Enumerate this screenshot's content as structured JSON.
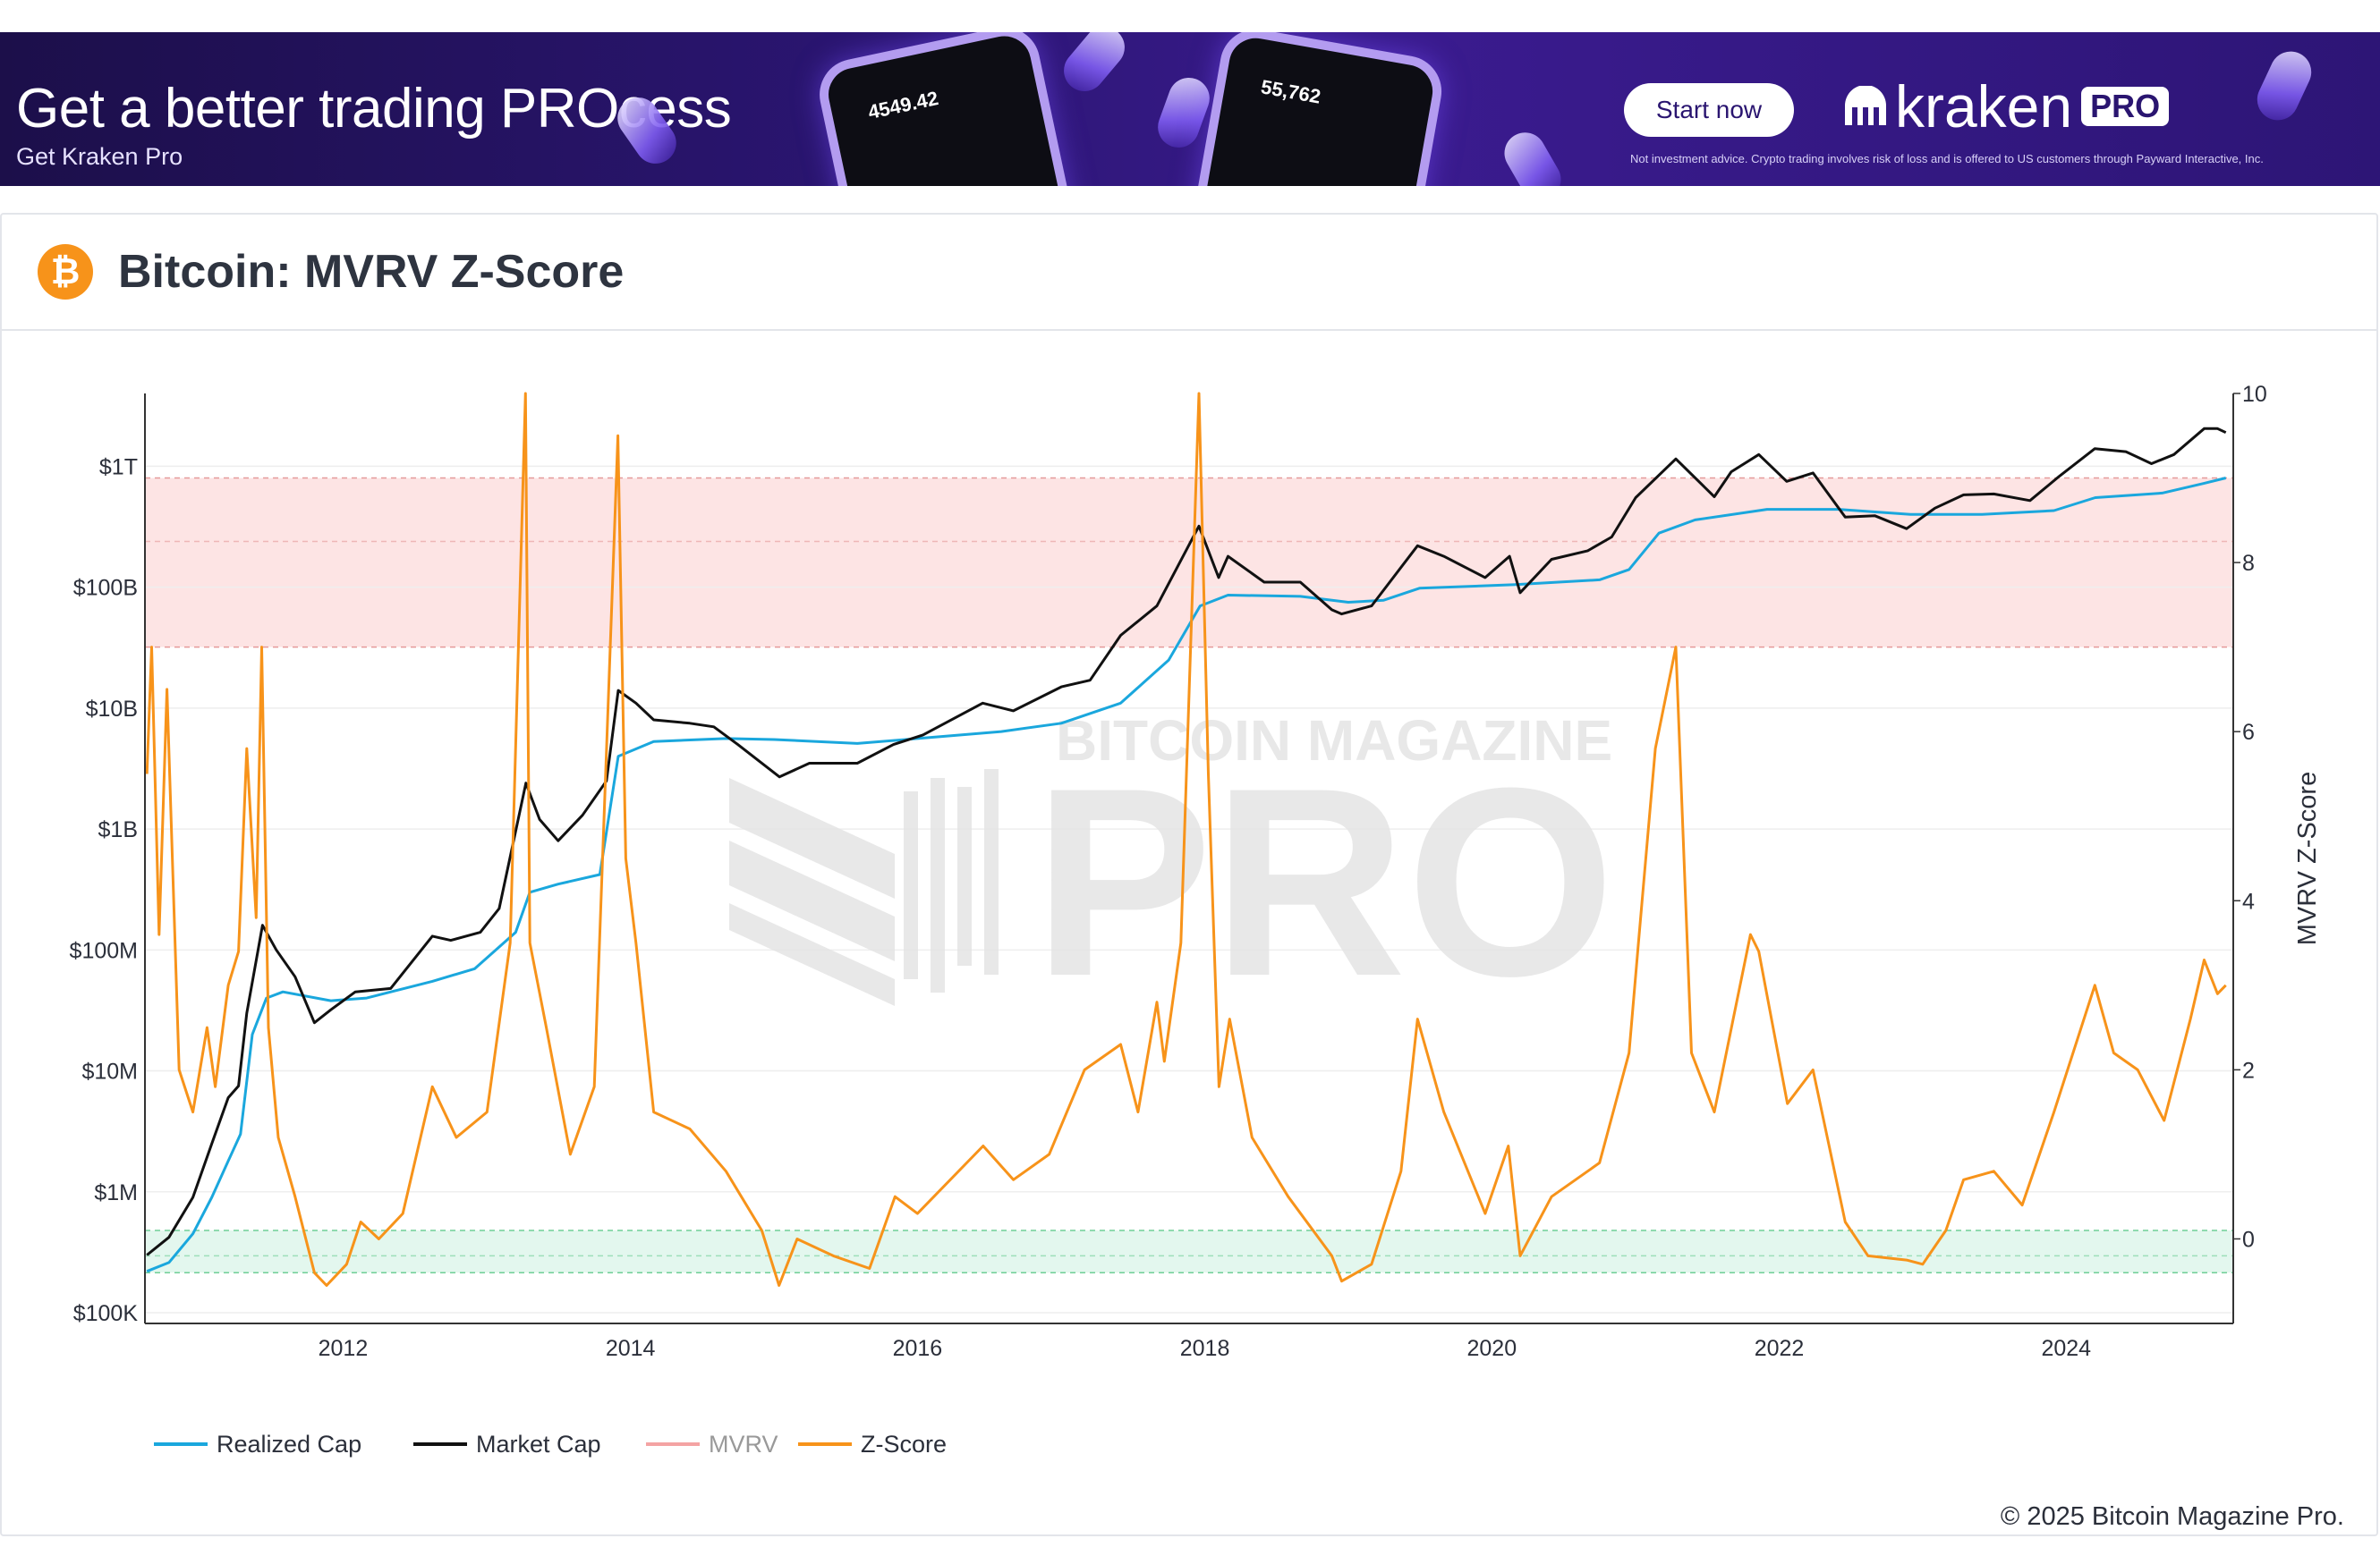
{
  "ad": {
    "headline": "Get a better trading PROcess",
    "subline": "Get Kraken Pro",
    "button_label": "Start now",
    "logo_text": "kraken",
    "logo_badge": "PRO",
    "disclaimer": "Not investment advice. Crypto trading involves risk of loss and is offered to US customers through Payward Interactive, Inc.",
    "phone1_text": "4549.42",
    "phone2_text": "55,762",
    "colors": {
      "background": "#2a1570",
      "accent": "#b39cf0"
    }
  },
  "header": {
    "icon": "bitcoin-icon",
    "icon_glyph": "₿",
    "title": "Bitcoin: MVRV Z-Score"
  },
  "watermark": {
    "line1": "BITCOIN MAGAZINE",
    "line2": "PRO"
  },
  "copyright": "© 2025 Bitcoin Magazine Pro.",
  "chart_data": {
    "type": "line",
    "title": "Bitcoin: MVRV Z-Score",
    "x_axis": {
      "range": [
        "2010-08-15",
        "2025-03-01"
      ],
      "ticks": [
        "2012",
        "2014",
        "2016",
        "2018",
        "2020",
        "2022",
        "2024"
      ]
    },
    "y_left": {
      "scale": "log",
      "range_usd": [
        100000,
        4000000000000
      ],
      "ticks": [
        {
          "value": 100000,
          "label": "$100K"
        },
        {
          "value": 1000000,
          "label": "$1M"
        },
        {
          "value": 10000000,
          "label": "$10M"
        },
        {
          "value": 100000000,
          "label": "$100M"
        },
        {
          "value": 1000000000,
          "label": "$1B"
        },
        {
          "value": 10000000000,
          "label": "$10B"
        },
        {
          "value": 100000000000,
          "label": "$100B"
        },
        {
          "value": 1000000000000,
          "label": "$1T"
        }
      ]
    },
    "y_right": {
      "label": "MVRV Z-Score",
      "range": [
        -1,
        10
      ],
      "ticks": [
        0,
        2,
        4,
        6,
        8,
        10
      ]
    },
    "bands": [
      {
        "name": "overvalued",
        "from": 7,
        "to": 9,
        "color": "#fde4e4",
        "mid_line": 8.25
      },
      {
        "name": "undervalued",
        "from": -0.4,
        "to": 0.1,
        "color": "#e3f7ee",
        "mid_line": -0.2
      }
    ],
    "legend": {
      "position": "bottom-left",
      "items": [
        {
          "name": "Realized Cap",
          "color": "#1aa7dd",
          "enabled": true
        },
        {
          "name": "Market Cap",
          "color": "#111111",
          "enabled": true
        },
        {
          "name": "MVRV",
          "color": "#f4a3a3",
          "enabled": false
        },
        {
          "name": "Z-Score",
          "color": "#f7931a",
          "enabled": true
        }
      ]
    },
    "series": [
      {
        "name": "Market Cap",
        "color": "#111111",
        "axis": "left",
        "points": [
          [
            "2010-08-20",
            300000
          ],
          [
            "2010-10-15",
            420000
          ],
          [
            "2010-12-15",
            900000
          ],
          [
            "2011-02-01",
            2500000
          ],
          [
            "2011-03-15",
            6000000
          ],
          [
            "2011-04-10",
            7500000
          ],
          [
            "2011-05-01",
            30000000
          ],
          [
            "2011-06-10",
            160000000
          ],
          [
            "2011-07-15",
            100000000
          ],
          [
            "2011-09-01",
            60000000
          ],
          [
            "2011-10-20",
            25000000
          ],
          [
            "2011-12-01",
            32000000
          ],
          [
            "2012-02-01",
            45000000
          ],
          [
            "2012-05-01",
            48000000
          ],
          [
            "2012-08-15",
            130000000
          ],
          [
            "2012-10-01",
            120000000
          ],
          [
            "2012-12-15",
            140000000
          ],
          [
            "2013-02-01",
            220000000
          ],
          [
            "2013-04-10",
            2400000000
          ],
          [
            "2013-05-15",
            1200000000
          ],
          [
            "2013-07-01",
            800000000
          ],
          [
            "2013-09-01",
            1300000000
          ],
          [
            "2013-11-01",
            2500000000
          ],
          [
            "2013-12-01",
            14000000000
          ],
          [
            "2014-01-15",
            11000000000
          ],
          [
            "2014-03-01",
            8000000000
          ],
          [
            "2014-06-01",
            7500000000
          ],
          [
            "2014-08-01",
            7000000000
          ],
          [
            "2014-10-01",
            5000000000
          ],
          [
            "2015-01-15",
            2700000000
          ],
          [
            "2015-04-01",
            3500000000
          ],
          [
            "2015-08-01",
            3500000000
          ],
          [
            "2015-11-01",
            5000000000
          ],
          [
            "2016-01-15",
            6000000000
          ],
          [
            "2016-06-15",
            11000000000
          ],
          [
            "2016-09-01",
            9500000000
          ],
          [
            "2017-01-01",
            15000000000
          ],
          [
            "2017-03-15",
            17000000000
          ],
          [
            "2017-06-01",
            40000000000
          ],
          [
            "2017-09-01",
            70000000000
          ],
          [
            "2017-12-17",
            320000000000
          ],
          [
            "2018-02-05",
            120000000000
          ],
          [
            "2018-03-01",
            180000000000
          ],
          [
            "2018-06-01",
            110000000000
          ],
          [
            "2018-09-01",
            110000000000
          ],
          [
            "2018-11-20",
            65000000000
          ],
          [
            "2018-12-15",
            60000000000
          ],
          [
            "2019-03-01",
            70000000000
          ],
          [
            "2019-06-26",
            220000000000
          ],
          [
            "2019-09-01",
            180000000000
          ],
          [
            "2019-12-15",
            120000000000
          ],
          [
            "2020-02-15",
            180000000000
          ],
          [
            "2020-03-13",
            90000000000
          ],
          [
            "2020-06-01",
            170000000000
          ],
          [
            "2020-09-01",
            200000000000
          ],
          [
            "2020-11-01",
            260000000000
          ],
          [
            "2021-01-01",
            550000000000
          ],
          [
            "2021-04-13",
            1150000000000
          ],
          [
            "2021-07-20",
            560000000000
          ],
          [
            "2021-09-01",
            900000000000
          ],
          [
            "2021-11-10",
            1250000000000
          ],
          [
            "2022-01-20",
            750000000000
          ],
          [
            "2022-03-28",
            880000000000
          ],
          [
            "2022-06-18",
            380000000000
          ],
          [
            "2022-09-01",
            390000000000
          ],
          [
            "2022-11-21",
            305000000000
          ],
          [
            "2023-02-01",
            450000000000
          ],
          [
            "2023-04-15",
            580000000000
          ],
          [
            "2023-07-01",
            590000000000
          ],
          [
            "2023-10-01",
            520000000000
          ],
          [
            "2023-12-15",
            830000000000
          ],
          [
            "2024-03-14",
            1400000000000
          ],
          [
            "2024-06-01",
            1320000000000
          ],
          [
            "2024-08-05",
            1050000000000
          ],
          [
            "2024-10-01",
            1250000000000
          ],
          [
            "2024-12-17",
            2050000000000
          ],
          [
            "2025-01-20",
            2050000000000
          ],
          [
            "2025-02-10",
            1900000000000
          ]
        ]
      },
      {
        "name": "Realized Cap",
        "color": "#1aa7dd",
        "axis": "left",
        "points": [
          [
            "2010-08-20",
            220000
          ],
          [
            "2010-10-15",
            260000
          ],
          [
            "2010-12-15",
            450000
          ],
          [
            "2011-02-01",
            900000
          ],
          [
            "2011-03-15",
            1800000
          ],
          [
            "2011-04-15",
            3000000
          ],
          [
            "2011-05-15",
            20000000
          ],
          [
            "2011-06-20",
            40000000
          ],
          [
            "2011-08-01",
            45000000
          ],
          [
            "2011-12-01",
            38000000
          ],
          [
            "2012-03-01",
            40000000
          ],
          [
            "2012-08-15",
            55000000
          ],
          [
            "2012-12-01",
            70000000
          ],
          [
            "2013-03-15",
            140000000
          ],
          [
            "2013-04-20",
            300000000
          ],
          [
            "2013-07-01",
            350000000
          ],
          [
            "2013-10-15",
            420000000
          ],
          [
            "2013-12-01",
            4000000000
          ],
          [
            "2014-03-01",
            5300000000
          ],
          [
            "2014-09-01",
            5600000000
          ],
          [
            "2015-01-01",
            5500000000
          ],
          [
            "2015-08-01",
            5100000000
          ],
          [
            "2016-01-01",
            5600000000
          ],
          [
            "2016-08-01",
            6400000000
          ],
          [
            "2017-01-01",
            7500000000
          ],
          [
            "2017-06-01",
            11000000000
          ],
          [
            "2017-10-01",
            25000000000
          ],
          [
            "2017-12-20",
            70000000000
          ],
          [
            "2018-03-01",
            86000000000
          ],
          [
            "2018-09-01",
            84000000000
          ],
          [
            "2019-01-01",
            75000000000
          ],
          [
            "2019-04-01",
            78000000000
          ],
          [
            "2019-07-01",
            98000000000
          ],
          [
            "2020-03-01",
            105000000000
          ],
          [
            "2020-10-01",
            115000000000
          ],
          [
            "2020-12-15",
            140000000000
          ],
          [
            "2021-03-01",
            280000000000
          ],
          [
            "2021-06-01",
            360000000000
          ],
          [
            "2021-12-01",
            440000000000
          ],
          [
            "2022-06-01",
            440000000000
          ],
          [
            "2022-12-01",
            400000000000
          ],
          [
            "2023-06-01",
            400000000000
          ],
          [
            "2023-12-01",
            430000000000
          ],
          [
            "2024-03-15",
            550000000000
          ],
          [
            "2024-09-01",
            600000000000
          ],
          [
            "2024-12-15",
            720000000000
          ],
          [
            "2025-02-10",
            800000000000
          ]
        ]
      },
      {
        "name": "Z-Score",
        "color": "#f7931a",
        "axis": "right",
        "points": [
          [
            "2010-08-20",
            5.5
          ],
          [
            "2010-09-01",
            7.0
          ],
          [
            "2010-09-20",
            3.6
          ],
          [
            "2010-10-10",
            6.5
          ],
          [
            "2010-11-10",
            2.0
          ],
          [
            "2010-12-15",
            1.5
          ],
          [
            "2011-01-20",
            2.5
          ],
          [
            "2011-02-10",
            1.8
          ],
          [
            "2011-03-15",
            3.0
          ],
          [
            "2011-04-10",
            3.4
          ],
          [
            "2011-05-01",
            5.8
          ],
          [
            "2011-05-25",
            3.8
          ],
          [
            "2011-06-08",
            7.0
          ],
          [
            "2011-06-25",
            2.5
          ],
          [
            "2011-07-20",
            1.2
          ],
          [
            "2011-09-01",
            0.5
          ],
          [
            "2011-10-20",
            -0.4
          ],
          [
            "2011-11-20",
            -0.55
          ],
          [
            "2012-01-10",
            -0.3
          ],
          [
            "2012-02-15",
            0.2
          ],
          [
            "2012-04-01",
            0.0
          ],
          [
            "2012-06-01",
            0.3
          ],
          [
            "2012-08-15",
            1.8
          ],
          [
            "2012-10-15",
            1.2
          ],
          [
            "2013-01-01",
            1.5
          ],
          [
            "2013-03-01",
            3.5
          ],
          [
            "2013-04-09",
            10.0
          ],
          [
            "2013-04-20",
            3.5
          ],
          [
            "2013-06-01",
            2.5
          ],
          [
            "2013-08-01",
            1.0
          ],
          [
            "2013-10-01",
            1.8
          ],
          [
            "2013-11-30",
            9.5
          ],
          [
            "2013-12-20",
            4.5
          ],
          [
            "2014-01-15",
            3.5
          ],
          [
            "2014-03-01",
            1.5
          ],
          [
            "2014-06-01",
            1.3
          ],
          [
            "2014-09-01",
            0.8
          ],
          [
            "2014-12-01",
            0.1
          ],
          [
            "2015-01-14",
            -0.55
          ],
          [
            "2015-03-01",
            0.0
          ],
          [
            "2015-06-01",
            -0.2
          ],
          [
            "2015-09-01",
            -0.35
          ],
          [
            "2015-11-05",
            0.5
          ],
          [
            "2016-01-01",
            0.3
          ],
          [
            "2016-06-16",
            1.1
          ],
          [
            "2016-09-01",
            0.7
          ],
          [
            "2016-12-01",
            1.0
          ],
          [
            "2017-03-01",
            2.0
          ],
          [
            "2017-06-01",
            2.3
          ],
          [
            "2017-07-15",
            1.5
          ],
          [
            "2017-09-01",
            2.8
          ],
          [
            "2017-09-20",
            2.1
          ],
          [
            "2017-11-01",
            3.5
          ],
          [
            "2017-12-17",
            10.0
          ],
          [
            "2018-01-10",
            5.5
          ],
          [
            "2018-02-06",
            1.8
          ],
          [
            "2018-03-05",
            2.6
          ],
          [
            "2018-05-01",
            1.2
          ],
          [
            "2018-08-01",
            0.5
          ],
          [
            "2018-11-20",
            -0.2
          ],
          [
            "2018-12-15",
            -0.5
          ],
          [
            "2019-03-01",
            -0.3
          ],
          [
            "2019-05-15",
            0.8
          ],
          [
            "2019-06-26",
            2.6
          ],
          [
            "2019-09-01",
            1.5
          ],
          [
            "2019-12-15",
            0.3
          ],
          [
            "2020-02-12",
            1.1
          ],
          [
            "2020-03-13",
            -0.2
          ],
          [
            "2020-06-01",
            0.5
          ],
          [
            "2020-10-01",
            0.9
          ],
          [
            "2020-12-15",
            2.2
          ],
          [
            "2021-01-08",
            3.5
          ],
          [
            "2021-02-20",
            5.8
          ],
          [
            "2021-04-13",
            7.0
          ],
          [
            "2021-05-23",
            2.2
          ],
          [
            "2021-07-20",
            1.5
          ],
          [
            "2021-09-06",
            2.6
          ],
          [
            "2021-10-20",
            3.6
          ],
          [
            "2021-11-10",
            3.4
          ],
          [
            "2022-01-22",
            1.6
          ],
          [
            "2022-03-28",
            2.0
          ],
          [
            "2022-06-18",
            0.2
          ],
          [
            "2022-08-15",
            -0.2
          ],
          [
            "2022-11-21",
            -0.25
          ],
          [
            "2023-01-01",
            -0.3
          ],
          [
            "2023-03-01",
            0.1
          ],
          [
            "2023-04-15",
            0.7
          ],
          [
            "2023-07-01",
            0.8
          ],
          [
            "2023-09-11",
            0.4
          ],
          [
            "2023-12-01",
            1.5
          ],
          [
            "2024-03-14",
            3.0
          ],
          [
            "2024-05-01",
            2.2
          ],
          [
            "2024-07-01",
            2.0
          ],
          [
            "2024-09-06",
            1.4
          ],
          [
            "2024-11-12",
            2.6
          ],
          [
            "2024-12-17",
            3.3
          ],
          [
            "2025-01-20",
            2.9
          ],
          [
            "2025-02-10",
            3.0
          ]
        ]
      }
    ]
  }
}
